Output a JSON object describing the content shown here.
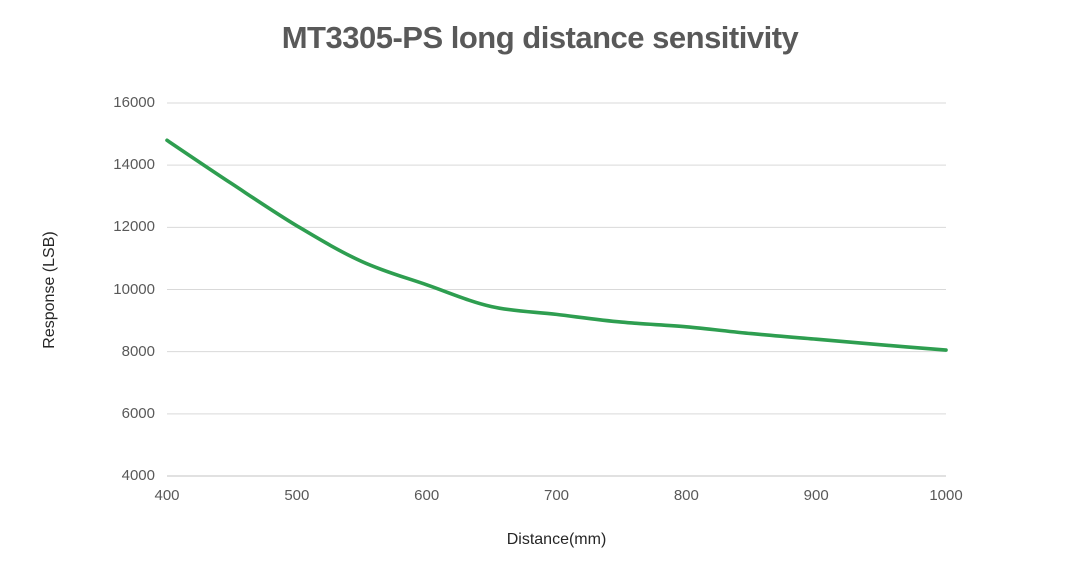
{
  "chart_data": {
    "type": "line",
    "title": "MT3305-PS long distance sensitivity",
    "xlabel": "Distance(mm)",
    "ylabel": "Response (LSB)",
    "x": [
      400,
      450,
      500,
      550,
      600,
      650,
      700,
      750,
      800,
      850,
      900,
      950,
      1000
    ],
    "series": [
      {
        "name": "Response",
        "values": [
          14800,
          13400,
          12050,
          10900,
          10150,
          9450,
          9200,
          8950,
          8800,
          8580,
          8400,
          8220,
          8050
        ]
      }
    ],
    "xlim": [
      400,
      1000
    ],
    "ylim": [
      4000,
      16000
    ],
    "x_ticks": [
      400,
      500,
      600,
      700,
      800,
      900,
      1000
    ],
    "y_ticks": [
      4000,
      6000,
      8000,
      10000,
      12000,
      14000,
      16000
    ],
    "grid": "horizontal gridlines only",
    "legend": "none",
    "line_smoothing": "smoothed (spline)",
    "colors": {
      "line": "#2e9e50",
      "grid": "#d9d9d9",
      "axis_line": "#c3c3c3",
      "title": "#595959",
      "tick_label": "#595959",
      "axis_title": "#262626",
      "background": "#ffffff"
    }
  }
}
